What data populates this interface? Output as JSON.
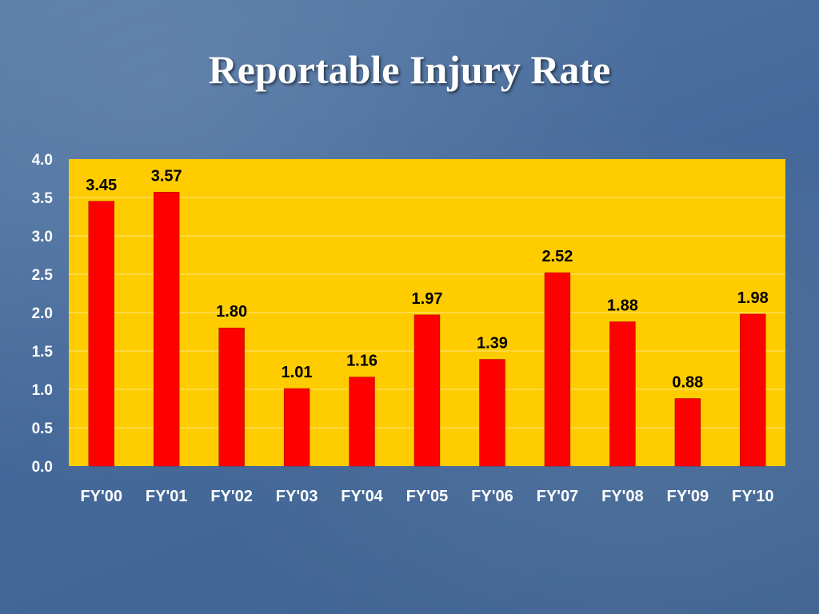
{
  "chart_data": {
    "type": "bar",
    "title": "Reportable Injury Rate",
    "categories": [
      "FY'00",
      "FY'01",
      "FY'02",
      "FY'03",
      "FY'04",
      "FY'05",
      "FY'06",
      "FY'07",
      "FY'08",
      "FY'09",
      "FY'10"
    ],
    "values": [
      3.45,
      3.57,
      1.8,
      1.01,
      1.16,
      1.97,
      1.39,
      2.52,
      1.88,
      0.88,
      1.98
    ],
    "data_labels": [
      "3.45",
      "3.57",
      "1.80",
      "1.01",
      "1.16",
      "1.97",
      "1.39",
      "2.52",
      "1.88",
      "0.88",
      "1.98"
    ],
    "yticks": [
      "0.0",
      "0.5",
      "1.0",
      "1.5",
      "2.0",
      "2.5",
      "3.0",
      "3.5",
      "4.0"
    ],
    "ylim": [
      0,
      4
    ],
    "xlabel": "",
    "ylabel": "",
    "grid": true,
    "legend": "none",
    "colors": {
      "plot_background": "#ffcc00",
      "bar": "#ff0000",
      "grid": "#ffe680",
      "background": "#4a6e9a"
    }
  }
}
